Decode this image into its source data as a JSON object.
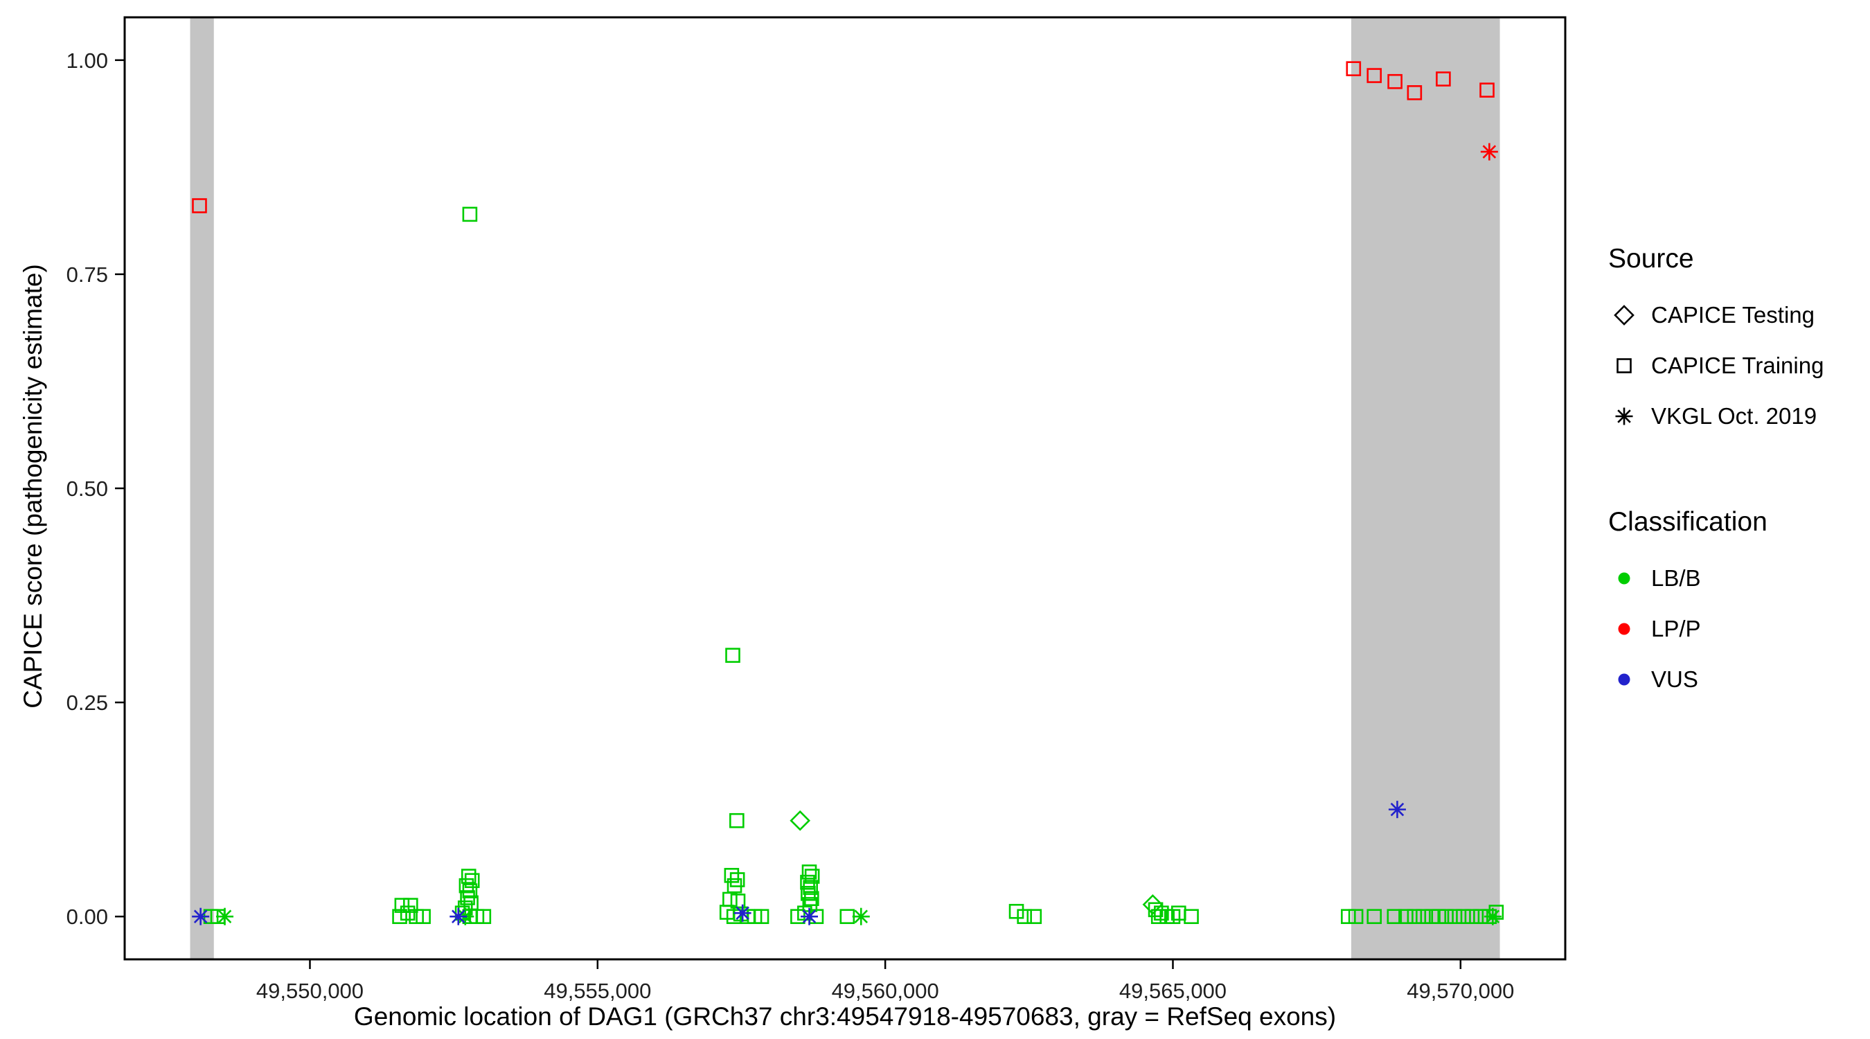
{
  "chart_data": {
    "type": "scatter",
    "title": "",
    "xlabel": "Genomic location of DAG1 (GRCh37 chr3:49547918-49570683, gray = RefSeq exons)",
    "ylabel": "CAPICE score (pathogenicity estimate)",
    "xlim": [
      49546780,
      49571820
    ],
    "ylim": [
      -0.05,
      1.05
    ],
    "grid": false,
    "band_color": "#c4c4c4",
    "x_ticks": [
      {
        "value": 49550000,
        "label": "49,550,000"
      },
      {
        "value": 49555000,
        "label": "49,555,000"
      },
      {
        "value": 49560000,
        "label": "49,560,000"
      },
      {
        "value": 49565000,
        "label": "49,565,000"
      },
      {
        "value": 49570000,
        "label": "49,570,000"
      }
    ],
    "y_ticks": [
      {
        "value": 0.0,
        "label": "0.00"
      },
      {
        "value": 0.25,
        "label": "0.25"
      },
      {
        "value": 0.5,
        "label": "0.50"
      },
      {
        "value": 0.75,
        "label": "0.75"
      },
      {
        "value": 1.0,
        "label": "1.00"
      }
    ],
    "exon_bands": [
      {
        "x0": 49547918,
        "x1": 49548330
      },
      {
        "x0": 49568100,
        "x1": 49570683
      }
    ],
    "series": [
      {
        "name": "LB/B - CAPICE Training",
        "classification": "LB/B",
        "source": "CAPICE Training",
        "shape": "square",
        "color": "#00cd00",
        "points": [
          [
            49548280,
            0
          ],
          [
            49548400,
            0
          ],
          [
            49551600,
            0.013
          ],
          [
            49551750,
            0.013
          ],
          [
            49551560,
            0
          ],
          [
            49551700,
            0.004
          ],
          [
            49551850,
            0
          ],
          [
            49551970,
            0
          ],
          [
            49552780,
            0.82
          ],
          [
            49552760,
            0.047
          ],
          [
            49552820,
            0.042
          ],
          [
            49552720,
            0.036
          ],
          [
            49552780,
            0.03
          ],
          [
            49552740,
            0.022
          ],
          [
            49552800,
            0.016
          ],
          [
            49552700,
            0.01
          ],
          [
            49552650,
            0.004
          ],
          [
            49552780,
            0
          ],
          [
            49552900,
            0
          ],
          [
            49553020,
            0
          ],
          [
            49557350,
            0.305
          ],
          [
            49557420,
            0.112
          ],
          [
            49557330,
            0.048
          ],
          [
            49557430,
            0.043
          ],
          [
            49557380,
            0.036
          ],
          [
            49557300,
            0.02
          ],
          [
            49557440,
            0.018
          ],
          [
            49557250,
            0.005
          ],
          [
            49557370,
            0
          ],
          [
            49557490,
            0.003
          ],
          [
            49557610,
            0
          ],
          [
            49557730,
            0
          ],
          [
            49557850,
            0
          ],
          [
            49558680,
            0.052
          ],
          [
            49558730,
            0.047
          ],
          [
            49558650,
            0.04
          ],
          [
            49558700,
            0.034
          ],
          [
            49558660,
            0.027
          ],
          [
            49558720,
            0.021
          ],
          [
            49558690,
            0.014
          ],
          [
            49558480,
            0
          ],
          [
            49558600,
            0.004
          ],
          [
            49558800,
            0
          ],
          [
            49559340,
            0
          ],
          [
            49562280,
            0.006
          ],
          [
            49562420,
            0
          ],
          [
            49562590,
            0
          ],
          [
            49564700,
            0.008
          ],
          [
            49564800,
            0.004
          ],
          [
            49564750,
            0
          ],
          [
            49564900,
            0
          ],
          [
            49565000,
            0
          ],
          [
            49565100,
            0.004
          ],
          [
            49565320,
            0
          ],
          [
            49568050,
            0
          ],
          [
            49568180,
            0
          ],
          [
            49568500,
            0
          ],
          [
            49568850,
            0
          ],
          [
            49569050,
            0
          ],
          [
            49569200,
            0
          ],
          [
            49569350,
            0
          ],
          [
            49569500,
            0
          ],
          [
            49569620,
            0
          ],
          [
            49569750,
            0
          ],
          [
            49569900,
            0
          ],
          [
            49570050,
            0
          ],
          [
            49570200,
            0
          ],
          [
            49570350,
            0
          ],
          [
            49570500,
            0
          ],
          [
            49570620,
            0.005
          ]
        ]
      },
      {
        "name": "LB/B - CAPICE Testing",
        "classification": "LB/B",
        "source": "CAPICE Testing",
        "shape": "diamond",
        "color": "#00cd00",
        "points": [
          [
            49558520,
            0.112
          ],
          [
            49564650,
            0.014
          ]
        ]
      },
      {
        "name": "LB/B - VKGL Oct. 2019",
        "classification": "LB/B",
        "source": "VKGL Oct. 2019",
        "shape": "asterisk",
        "color": "#00cd00",
        "points": [
          [
            49548520,
            0
          ],
          [
            49552700,
            0
          ],
          [
            49559580,
            0
          ],
          [
            49570560,
            0
          ]
        ]
      },
      {
        "name": "LP/P - CAPICE Training",
        "classification": "LP/P",
        "source": "CAPICE Training",
        "shape": "square",
        "color": "#ff0000",
        "points": [
          [
            49548080,
            0.83
          ],
          [
            49568140,
            0.99
          ],
          [
            49568500,
            0.982
          ],
          [
            49568860,
            0.975
          ],
          [
            49569200,
            0.962
          ],
          [
            49569700,
            0.978
          ],
          [
            49570460,
            0.965
          ]
        ]
      },
      {
        "name": "LP/P - VKGL Oct. 2019",
        "classification": "LP/P",
        "source": "VKGL Oct. 2019",
        "shape": "asterisk",
        "color": "#ff0000",
        "points": [
          [
            49570500,
            0.893
          ]
        ]
      },
      {
        "name": "VUS - VKGL Oct. 2019",
        "classification": "VUS",
        "source": "VKGL Oct. 2019",
        "shape": "asterisk",
        "color": "#2222cc",
        "points": [
          [
            49548100,
            0
          ],
          [
            49552580,
            0
          ],
          [
            49557520,
            0.004
          ],
          [
            49558680,
            0
          ],
          [
            49568900,
            0.125
          ]
        ]
      }
    ]
  },
  "legend": {
    "source": {
      "title": "Source",
      "items": [
        {
          "label": "CAPICE Testing",
          "shape": "diamond",
          "color": "#000000"
        },
        {
          "label": "CAPICE Training",
          "shape": "square",
          "color": "#000000"
        },
        {
          "label": "VKGL Oct. 2019",
          "shape": "asterisk",
          "color": "#000000"
        }
      ]
    },
    "classification": {
      "title": "Classification",
      "items": [
        {
          "label": "LB/B",
          "shape": "circle",
          "color": "#00cd00"
        },
        {
          "label": "LP/P",
          "shape": "circle",
          "color": "#ff0000"
        },
        {
          "label": "VUS",
          "shape": "circle",
          "color": "#2222cc"
        }
      ]
    }
  }
}
